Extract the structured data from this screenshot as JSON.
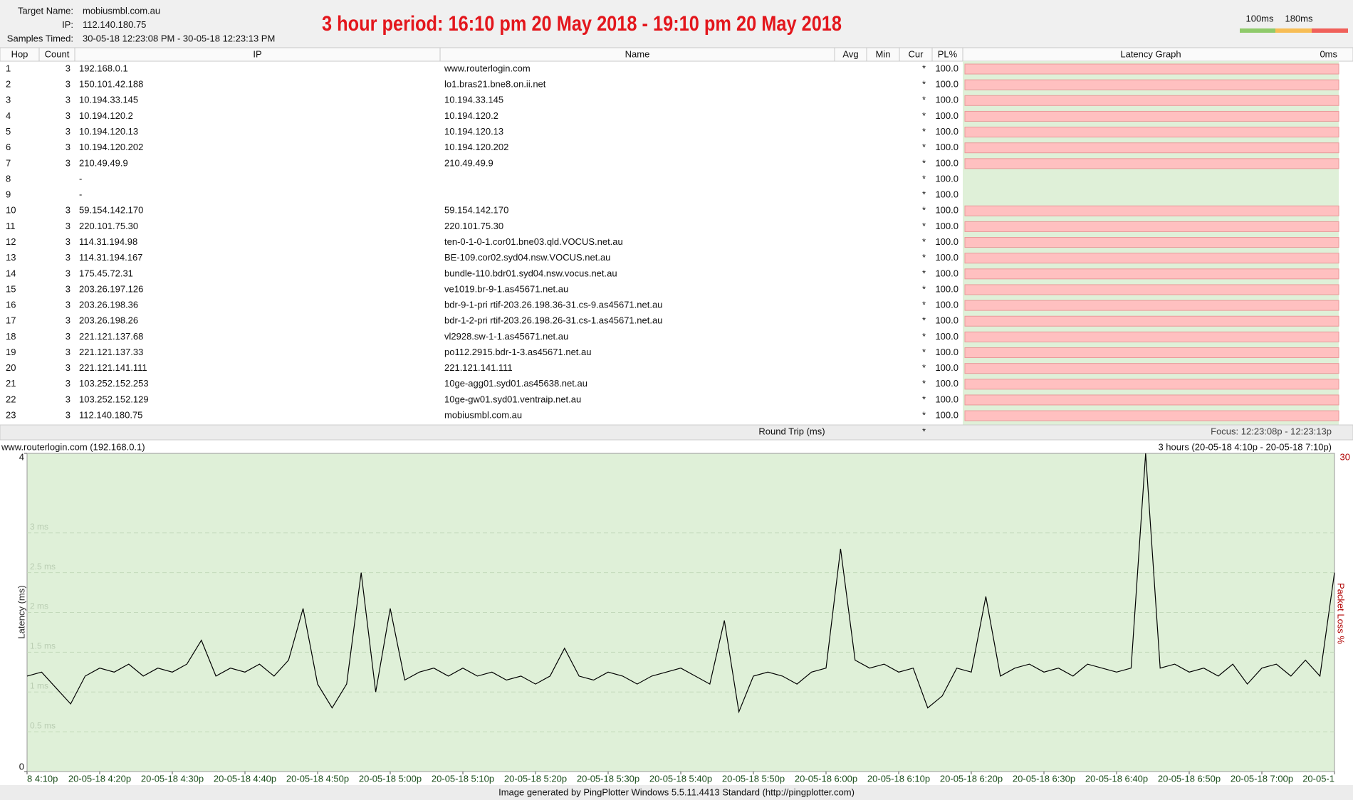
{
  "header": {
    "fields": [
      {
        "label": "Target Name:",
        "value": "mobiusmbl.com.au"
      },
      {
        "label": "IP:",
        "value": "112.140.180.75"
      },
      {
        "label": "Samples Timed:",
        "value": "30-05-18 12:23:08 PM - 30-05-18 12:23:13 PM"
      }
    ],
    "banner": "3 hour period:  16:10 pm 20 May 2018 - 19:10 pm 20 May 2018",
    "legend": [
      "100ms",
      "180ms"
    ]
  },
  "table": {
    "columns": [
      "Hop",
      "Count",
      "IP",
      "Name",
      "Avg",
      "Min",
      "Cur",
      "PL%",
      "Latency Graph"
    ],
    "graph_scale_label": "0ms",
    "rows": [
      [
        1,
        3,
        "192.168.0.1",
        "www.routerlogin.com",
        "*",
        "100.0"
      ],
      [
        2,
        3,
        "150.101.42.188",
        "lo1.bras21.bne8.on.ii.net",
        "*",
        "100.0"
      ],
      [
        3,
        3,
        "10.194.33.145",
        "10.194.33.145",
        "*",
        "100.0"
      ],
      [
        4,
        3,
        "10.194.120.2",
        "10.194.120.2",
        "*",
        "100.0"
      ],
      [
        5,
        3,
        "10.194.120.13",
        "10.194.120.13",
        "*",
        "100.0"
      ],
      [
        6,
        3,
        "10.194.120.202",
        "10.194.120.202",
        "*",
        "100.0"
      ],
      [
        7,
        3,
        "210.49.49.9",
        "210.49.49.9",
        "*",
        "100.0"
      ],
      [
        8,
        null,
        "-",
        null,
        "*",
        "100.0"
      ],
      [
        9,
        null,
        "-",
        null,
        "*",
        "100.0"
      ],
      [
        10,
        3,
        "59.154.142.170",
        "59.154.142.170",
        "*",
        "100.0"
      ],
      [
        11,
        3,
        "220.101.75.30",
        "220.101.75.30",
        "*",
        "100.0"
      ],
      [
        12,
        3,
        "114.31.194.98",
        "ten-0-1-0-1.cor01.bne03.qld.VOCUS.net.au",
        "*",
        "100.0"
      ],
      [
        13,
        3,
        "114.31.194.167",
        "BE-109.cor02.syd04.nsw.VOCUS.net.au",
        "*",
        "100.0"
      ],
      [
        14,
        3,
        "175.45.72.31",
        "bundle-110.bdr01.syd04.nsw.vocus.net.au",
        "*",
        "100.0"
      ],
      [
        15,
        3,
        "203.26.197.126",
        "ve1019.br-9-1.as45671.net.au",
        "*",
        "100.0"
      ],
      [
        16,
        3,
        "203.26.198.36",
        "bdr-9-1-pri rtif-203.26.198.36-31.cs-9.as45671.net.au",
        "*",
        "100.0"
      ],
      [
        17,
        3,
        "203.26.198.26",
        "bdr-1-2-pri rtif-203.26.198.26-31.cs-1.as45671.net.au",
        "*",
        "100.0"
      ],
      [
        18,
        3,
        "221.121.137.68",
        "vl2928.sw-1-1.as45671.net.au",
        "*",
        "100.0"
      ],
      [
        19,
        3,
        "221.121.137.33",
        "po112.2915.bdr-1-3.as45671.net.au",
        "*",
        "100.0"
      ],
      [
        20,
        3,
        "221.121.141.111",
        "221.121.141.111",
        "*",
        "100.0"
      ],
      [
        21,
        3,
        "103.252.152.253",
        "10ge-agg01.syd01.as45638.net.au",
        "*",
        "100.0"
      ],
      [
        22,
        3,
        "103.252.152.129",
        "10ge-gw01.syd01.ventraip.net.au",
        "*",
        "100.0"
      ],
      [
        23,
        3,
        "112.140.180.75",
        "mobiusmbl.com.au",
        "*",
        "100.0"
      ]
    ]
  },
  "summary": {
    "label": "Round Trip (ms)",
    "cur": "*",
    "focus": "Focus: 12:23:08p - 12:23:13p"
  },
  "chart_data": {
    "type": "line",
    "title": "www.routerlogin.com (192.168.0.1)",
    "subtitle": "3 hours (20-05-18 4:10p - 20-05-18 7:10p)",
    "y_label": "Latency (ms)",
    "y2_label": "Packet Loss %",
    "xlim": [
      0,
      180
    ],
    "ylim": [
      0,
      4
    ],
    "y2lim": [
      0,
      30
    ],
    "y2ticks": [
      30
    ],
    "grid": true,
    "yticks": [
      0,
      {
        "value": 0.5,
        "label": "0.5 ms"
      },
      {
        "value": 1,
        "label": "1 ms"
      },
      {
        "value": 1.5,
        "label": "1.5 ms"
      },
      {
        "value": 2,
        "label": "2 ms"
      },
      {
        "value": 2.5,
        "label": "2.5 ms"
      },
      {
        "value": 3,
        "label": "3 ms"
      },
      4
    ],
    "xticks": [
      {
        "value": 0,
        "label": "8 4:10p"
      },
      {
        "value": 10,
        "label": "20-05-18 4:20p"
      },
      {
        "value": 20,
        "label": "20-05-18 4:30p"
      },
      {
        "value": 30,
        "label": "20-05-18 4:40p"
      },
      {
        "value": 40,
        "label": "20-05-18 4:50p"
      },
      {
        "value": 50,
        "label": "20-05-18 5:00p"
      },
      {
        "value": 60,
        "label": "20-05-18 5:10p"
      },
      {
        "value": 70,
        "label": "20-05-18 5:20p"
      },
      {
        "value": 80,
        "label": "20-05-18 5:30p"
      },
      {
        "value": 90,
        "label": "20-05-18 5:40p"
      },
      {
        "value": 100,
        "label": "20-05-18 5:50p"
      },
      {
        "value": 110,
        "label": "20-05-18 6:00p"
      },
      {
        "value": 120,
        "label": "20-05-18 6:10p"
      },
      {
        "value": 130,
        "label": "20-05-18 6:20p"
      },
      {
        "value": 140,
        "label": "20-05-18 6:30p"
      },
      {
        "value": 150,
        "label": "20-05-18 6:40p"
      },
      {
        "value": 160,
        "label": "20-05-18 6:50p"
      },
      {
        "value": 170,
        "label": "20-05-18 7:00p"
      },
      {
        "value": 180,
        "label": "20-05-1"
      }
    ],
    "series": [
      {
        "color": "#000000",
        "x": [
          0,
          2,
          4,
          6,
          8,
          10,
          12,
          14,
          16,
          18,
          20,
          22,
          24,
          26,
          28,
          30,
          32,
          34,
          36,
          38,
          40,
          42,
          44,
          46,
          48,
          50,
          52,
          54,
          56,
          58,
          60,
          62,
          64,
          66,
          68,
          70,
          72,
          74,
          76,
          78,
          80,
          82,
          84,
          86,
          88,
          90,
          92,
          94,
          96,
          98,
          100,
          102,
          104,
          106,
          108,
          110,
          112,
          114,
          116,
          118,
          120,
          122,
          124,
          126,
          128,
          130,
          132,
          134,
          136,
          138,
          140,
          142,
          144,
          146,
          148,
          150,
          152,
          154,
          156,
          158,
          160,
          162,
          164,
          166,
          168,
          170,
          172,
          174,
          176,
          178,
          180
        ],
        "values": [
          1.2,
          1.25,
          1.05,
          0.85,
          1.2,
          1.3,
          1.25,
          1.35,
          1.2,
          1.3,
          1.25,
          1.35,
          1.65,
          1.2,
          1.3,
          1.25,
          1.35,
          1.2,
          1.4,
          2.05,
          1.1,
          0.8,
          1.1,
          2.5,
          1.0,
          2.05,
          1.15,
          1.25,
          1.3,
          1.2,
          1.3,
          1.2,
          1.25,
          1.15,
          1.2,
          1.1,
          1.2,
          1.55,
          1.2,
          1.15,
          1.25,
          1.2,
          1.1,
          1.2,
          1.25,
          1.3,
          1.2,
          1.1,
          1.9,
          0.75,
          1.2,
          1.25,
          1.2,
          1.1,
          1.25,
          1.3,
          2.8,
          1.4,
          1.3,
          1.35,
          1.25,
          1.3,
          0.8,
          0.95,
          1.3,
          1.25,
          2.2,
          1.2,
          1.3,
          1.35,
          1.25,
          1.3,
          1.2,
          1.35,
          1.3,
          1.25,
          1.3,
          4.0,
          1.3,
          1.35,
          1.25,
          1.3,
          1.2,
          1.35,
          1.1,
          1.3,
          1.35,
          1.2,
          1.4,
          1.2,
          2.5
        ]
      }
    ]
  },
  "footer": "Image generated by PingPlotter Windows 5.5.11.4413 Standard (http://pingplotter.com)"
}
